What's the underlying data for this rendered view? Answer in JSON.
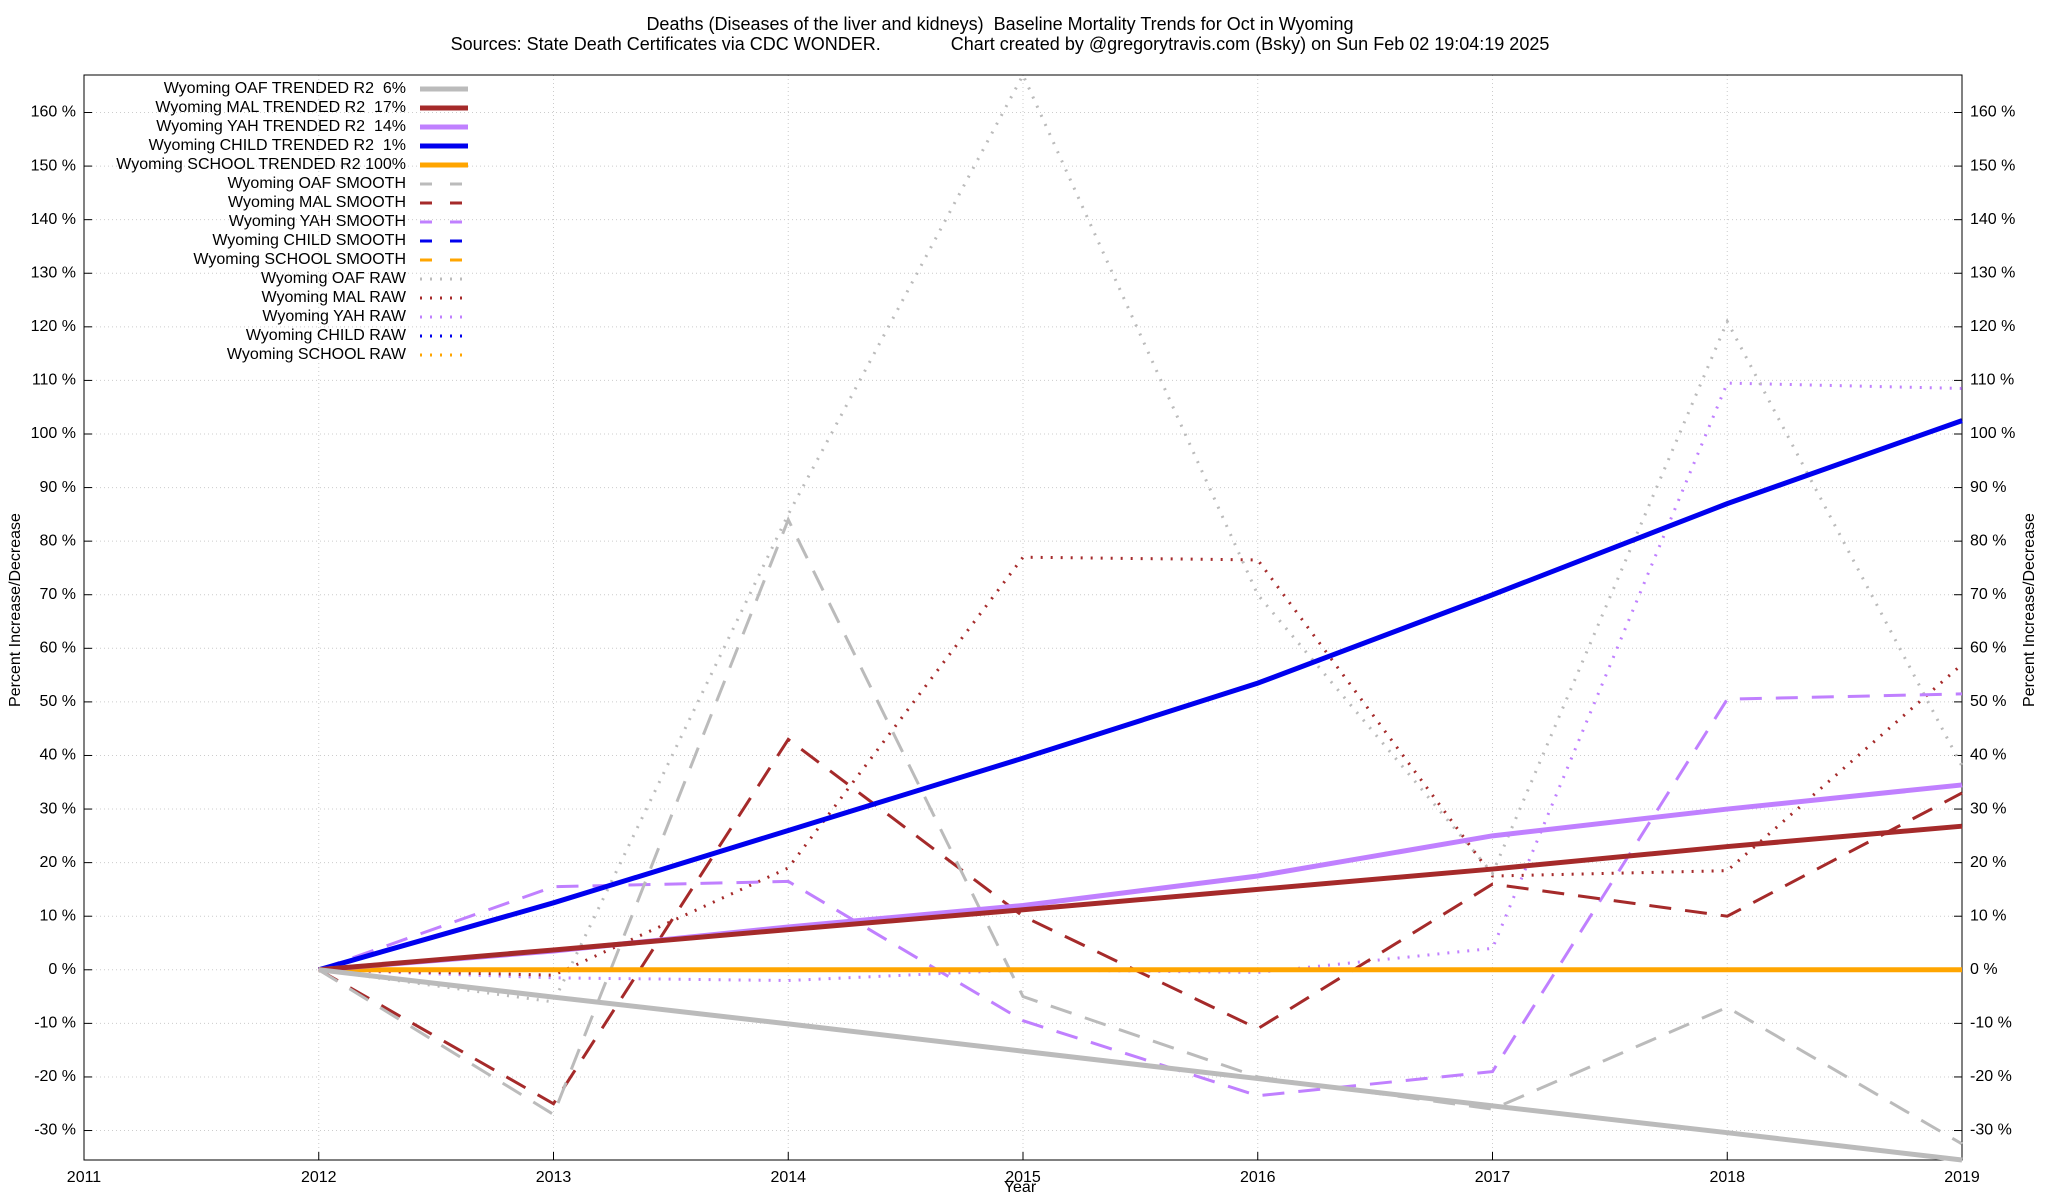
{
  "chart_data": {
    "type": "line",
    "title": "Deaths (Diseases of the liver and kidneys)  Baseline Mortality Trends for Oct in Wyoming",
    "subtitle": "Sources: State Death Certificates via CDC WONDER.              Chart created by @gregorytravis.com (Bsky) on Sun Feb 02 19:04:19 2025",
    "x_label": "Year",
    "y_label": "Percent Increase/Decrease",
    "y2_label": "Percent Increase/Decrease",
    "x": [
      2012,
      2013,
      2014,
      2015,
      2016,
      2017,
      2018,
      2019
    ],
    "xlim": [
      2011,
      2019
    ],
    "xticks": [
      2011,
      2012,
      2013,
      2014,
      2015,
      2016,
      2017,
      2018,
      2019
    ],
    "ylim": [
      -35.5,
      167
    ],
    "yticks": [
      {
        "value": -30,
        "label": "-30 %"
      },
      {
        "value": -20,
        "label": "-20 %"
      },
      {
        "value": -10,
        "label": "-10 %"
      },
      {
        "value": 0,
        "label": "0 %"
      },
      {
        "value": 10,
        "label": "10 %"
      },
      {
        "value": 20,
        "label": "20 %"
      },
      {
        "value": 30,
        "label": "30 %"
      },
      {
        "value": 40,
        "label": "40 %"
      },
      {
        "value": 50,
        "label": "50 %"
      },
      {
        "value": 60,
        "label": "60 %"
      },
      {
        "value": 70,
        "label": "70 %"
      },
      {
        "value": 80,
        "label": "80 %"
      },
      {
        "value": 90,
        "label": "90 %"
      },
      {
        "value": 100,
        "label": "100 %"
      },
      {
        "value": 110,
        "label": "110 %"
      },
      {
        "value": 120,
        "label": "120 %"
      },
      {
        "value": 130,
        "label": "130 %"
      },
      {
        "value": 140,
        "label": "140 %"
      },
      {
        "value": 150,
        "label": "150 %"
      },
      {
        "value": 160,
        "label": "160 %"
      }
    ],
    "grid": true,
    "legend": "top-left",
    "series": [
      {
        "name": "Wyoming OAF TRENDED R2  6%",
        "color": "#bbbbbb",
        "style": "solid",
        "values": [
          0,
          -5.1,
          -10.1,
          -15.2,
          -20.3,
          -25.4,
          -30.4,
          -35.5
        ]
      },
      {
        "name": "Wyoming MAL TRENDED R2  17%",
        "color": "#a52a2a",
        "style": "solid",
        "values": [
          0,
          3.7,
          7.5,
          11.2,
          15,
          18.8,
          23,
          26.8
        ]
      },
      {
        "name": "Wyoming YAH TRENDED R2  14%",
        "color": "#c080ff",
        "style": "solid",
        "values": [
          0,
          3.5,
          8,
          12,
          17.5,
          25,
          30,
          34.5
        ]
      },
      {
        "name": "Wyoming CHILD TRENDED R2  1%",
        "color": "#0000ee",
        "style": "solid",
        "values": [
          0,
          12.5,
          26,
          39.5,
          53.5,
          70,
          87,
          102.5
        ]
      },
      {
        "name": "Wyoming SCHOOL TRENDED R2 100%",
        "color": "#ffa500",
        "style": "solid",
        "values": [
          0,
          0,
          0,
          0,
          0,
          0,
          0,
          0
        ]
      },
      {
        "name": "Wyoming OAF SMOOTH",
        "color": "#bbbbbb",
        "style": "dashed",
        "values": [
          0,
          -27,
          84,
          -5,
          -20,
          -26,
          -7,
          -32.5
        ]
      },
      {
        "name": "Wyoming MAL SMOOTH",
        "color": "#a52a2a",
        "style": "dashed",
        "values": [
          0,
          -25,
          43,
          10,
          -11,
          16,
          10,
          33
        ]
      },
      {
        "name": "Wyoming YAH SMOOTH",
        "color": "#c080ff",
        "style": "dashed",
        "values": [
          0,
          15.5,
          16.5,
          -9.5,
          -23.5,
          -19,
          50.5,
          51.5
        ]
      },
      {
        "name": "Wyoming CHILD SMOOTH",
        "color": "#0000ee",
        "style": "dashed",
        "values": [
          0,
          0,
          0,
          0,
          0,
          0,
          0,
          0
        ]
      },
      {
        "name": "Wyoming SCHOOL SMOOTH",
        "color": "#ffa500",
        "style": "dashed",
        "values": [
          0,
          0,
          0,
          0,
          0,
          0,
          0,
          0
        ]
      },
      {
        "name": "Wyoming OAF RAW",
        "color": "#bbbbbb",
        "style": "dotted",
        "values": [
          0,
          -6,
          85,
          167,
          70,
          18,
          121,
          38
        ]
      },
      {
        "name": "Wyoming MAL RAW",
        "color": "#a52a2a",
        "style": "dotted",
        "values": [
          0,
          -1,
          19,
          77,
          76.5,
          17.5,
          18.5,
          57
        ]
      },
      {
        "name": "Wyoming YAH RAW",
        "color": "#c080ff",
        "style": "dotted",
        "values": [
          0,
          -1.5,
          -2,
          0,
          -0.5,
          4,
          109.5,
          108.5
        ]
      },
      {
        "name": "Wyoming CHILD RAW",
        "color": "#0000ee",
        "style": "dotted",
        "values": [
          0,
          0,
          0,
          0,
          0,
          0,
          0,
          0
        ]
      },
      {
        "name": "Wyoming SCHOOL RAW",
        "color": "#ffa500",
        "style": "dotted",
        "values": [
          0,
          0,
          0,
          0,
          0,
          0,
          0,
          0
        ]
      }
    ]
  }
}
